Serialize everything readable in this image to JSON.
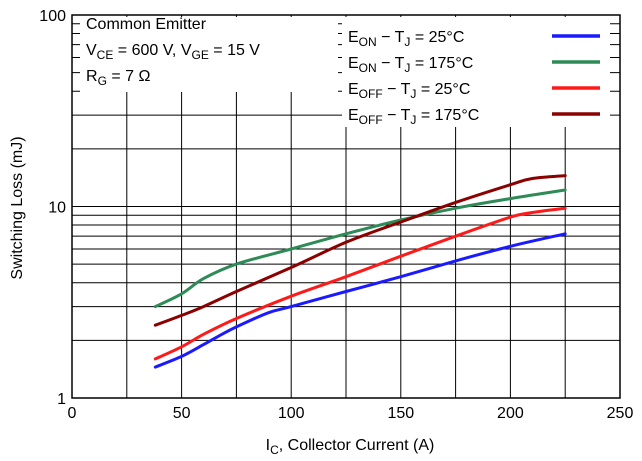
{
  "chart_data": {
    "type": "line",
    "xlabel": {
      "main": "I",
      "sub": "C",
      "rest": ", Collector Current (A)"
    },
    "ylabel": "Switching Loss (mJ)",
    "xlim": [
      0,
      250
    ],
    "ylim": [
      1,
      100
    ],
    "y_scale": "log",
    "grid": true,
    "legend_position": "top-right",
    "x_ticks": [
      0,
      50,
      100,
      150,
      200,
      250
    ],
    "y_ticks": [
      1,
      10,
      100
    ],
    "annotation": {
      "line1": "Common Emitter",
      "line2": {
        "a": "V",
        "a_sub": "CE",
        "b": " = 600 V, V",
        "b_sub": "GE",
        "c": " = 15 V"
      },
      "line3": {
        "a": "R",
        "a_sub": "G",
        "b": " = 7 Ω"
      }
    },
    "series": [
      {
        "name": {
          "a": "E",
          "sub": "ON",
          "b": " − T",
          "sub2": "J",
          "c": " = 25°C"
        },
        "color": "#1a1aff",
        "x": [
          38,
          50,
          60,
          70,
          80,
          90,
          100,
          125,
          150,
          175,
          200,
          225
        ],
        "y": [
          1.45,
          1.65,
          1.9,
          2.2,
          2.5,
          2.8,
          3.0,
          3.6,
          4.3,
          5.2,
          6.2,
          7.2
        ]
      },
      {
        "name": {
          "a": "E",
          "sub": "ON",
          "b": " − T",
          "sub2": "J",
          "c": " = 175°C"
        },
        "color": "#2e8b57",
        "x": [
          38,
          50,
          60,
          75,
          100,
          125,
          150,
          175,
          200,
          225
        ],
        "y": [
          3.0,
          3.5,
          4.2,
          5.0,
          6.0,
          7.2,
          8.5,
          9.8,
          11.0,
          12.2
        ]
      },
      {
        "name": {
          "a": "E",
          "sub": "OFF",
          "b": " − T",
          "sub2": "J",
          "c": " = 25°C"
        },
        "color": "#ff1a1a",
        "x": [
          38,
          50,
          60,
          75,
          100,
          125,
          150,
          175,
          200,
          210,
          225
        ],
        "y": [
          1.6,
          1.85,
          2.15,
          2.6,
          3.4,
          4.3,
          5.5,
          7.0,
          8.8,
          9.3,
          9.8
        ]
      },
      {
        "name": {
          "a": "E",
          "sub": "OFF",
          "b": " − T",
          "sub2": "J",
          "c": " = 175°C"
        },
        "color": "#8b0000",
        "x": [
          38,
          50,
          60,
          75,
          100,
          125,
          150,
          175,
          200,
          210,
          225
        ],
        "y": [
          2.4,
          2.7,
          3.0,
          3.6,
          4.8,
          6.5,
          8.3,
          10.5,
          13.0,
          14.0,
          14.5
        ]
      }
    ]
  }
}
